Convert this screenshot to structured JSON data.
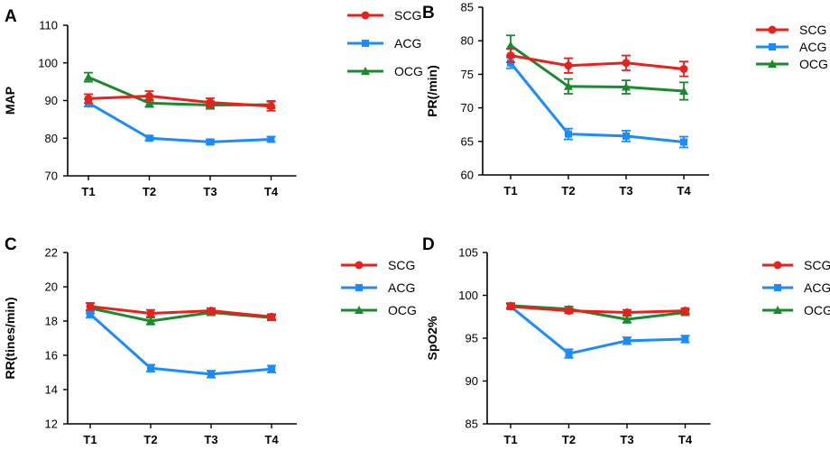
{
  "colors": {
    "SCG": "#e8211c",
    "ACG": "#1a8cff",
    "OCG": "#1a8a2e",
    "axis": "#000000"
  },
  "chart_data": [
    {
      "panel": "A",
      "type": "line",
      "ylabel": "MAP",
      "ylim": [
        70,
        110
      ],
      "yticks": [
        "70",
        "80",
        "90",
        "100",
        "110"
      ],
      "categories": [
        "T1",
        "T2",
        "T3",
        "T4"
      ],
      "series": [
        {
          "name": "SCG",
          "marker": "circle",
          "values": [
            90.5,
            91.2,
            89.5,
            88.5
          ],
          "errors": [
            1.2,
            1.3,
            1.1,
            1.2
          ]
        },
        {
          "name": "ACG",
          "marker": "square",
          "values": [
            89.4,
            80.0,
            79.0,
            79.7
          ],
          "errors": [
            1.0,
            0.6,
            0.6,
            0.7
          ]
        },
        {
          "name": "OCG",
          "marker": "triangle",
          "values": [
            96.2,
            89.3,
            88.8,
            88.9
          ],
          "errors": [
            1.2,
            1.0,
            1.0,
            1.0
          ]
        }
      ]
    },
    {
      "panel": "B",
      "type": "line",
      "ylabel": "PR(/min)",
      "ylim": [
        60,
        85
      ],
      "yticks": [
        "60",
        "65",
        "70",
        "75",
        "80",
        "85"
      ],
      "categories": [
        "T1",
        "T2",
        "T3",
        "T4"
      ],
      "series": [
        {
          "name": "SCG",
          "marker": "circle",
          "values": [
            77.8,
            76.3,
            76.7,
            75.8
          ],
          "errors": [
            1.0,
            1.1,
            1.1,
            1.1
          ]
        },
        {
          "name": "ACG",
          "marker": "square",
          "values": [
            76.7,
            66.1,
            65.8,
            64.9
          ],
          "errors": [
            0.8,
            0.8,
            0.8,
            0.8
          ]
        },
        {
          "name": "OCG",
          "marker": "triangle",
          "values": [
            79.3,
            73.2,
            73.1,
            72.5
          ],
          "errors": [
            1.5,
            1.1,
            1.0,
            1.3
          ]
        }
      ]
    },
    {
      "panel": "C",
      "type": "line",
      "ylabel": "RR(tines/min)",
      "ylim": [
        12,
        22
      ],
      "yticks": [
        "12",
        "14",
        "16",
        "18",
        "20",
        "22"
      ],
      "categories": [
        "T1",
        "T2",
        "T3",
        "T4"
      ],
      "series": [
        {
          "name": "SCG",
          "marker": "circle",
          "values": [
            18.85,
            18.45,
            18.6,
            18.25
          ],
          "errors": [
            0.2,
            0.2,
            0.15,
            0.15
          ]
        },
        {
          "name": "ACG",
          "marker": "square",
          "values": [
            18.4,
            15.25,
            14.9,
            15.2
          ],
          "errors": [
            0.2,
            0.2,
            0.2,
            0.2
          ]
        },
        {
          "name": "OCG",
          "marker": "triangle",
          "values": [
            18.75,
            18.0,
            18.5,
            18.2
          ],
          "errors": [
            0.3,
            0.2,
            0.15,
            0.15
          ]
        }
      ]
    },
    {
      "panel": "D",
      "type": "line",
      "ylabel": "SpO2%",
      "ylim": [
        85,
        105
      ],
      "yticks": [
        "85",
        "90",
        "95",
        "100",
        "105"
      ],
      "categories": [
        "T1",
        "T2",
        "T3",
        "T4"
      ],
      "series": [
        {
          "name": "SCG",
          "marker": "circle",
          "values": [
            98.7,
            98.2,
            98.0,
            98.2
          ],
          "errors": [
            0.3,
            0.3,
            0.3,
            0.3
          ]
        },
        {
          "name": "ACG",
          "marker": "square",
          "values": [
            98.7,
            93.2,
            94.7,
            94.9
          ],
          "errors": [
            0.3,
            0.5,
            0.4,
            0.4
          ]
        },
        {
          "name": "OCG",
          "marker": "triangle",
          "values": [
            98.8,
            98.4,
            97.2,
            98.0
          ],
          "errors": [
            0.3,
            0.3,
            0.4,
            0.3
          ]
        }
      ]
    }
  ]
}
